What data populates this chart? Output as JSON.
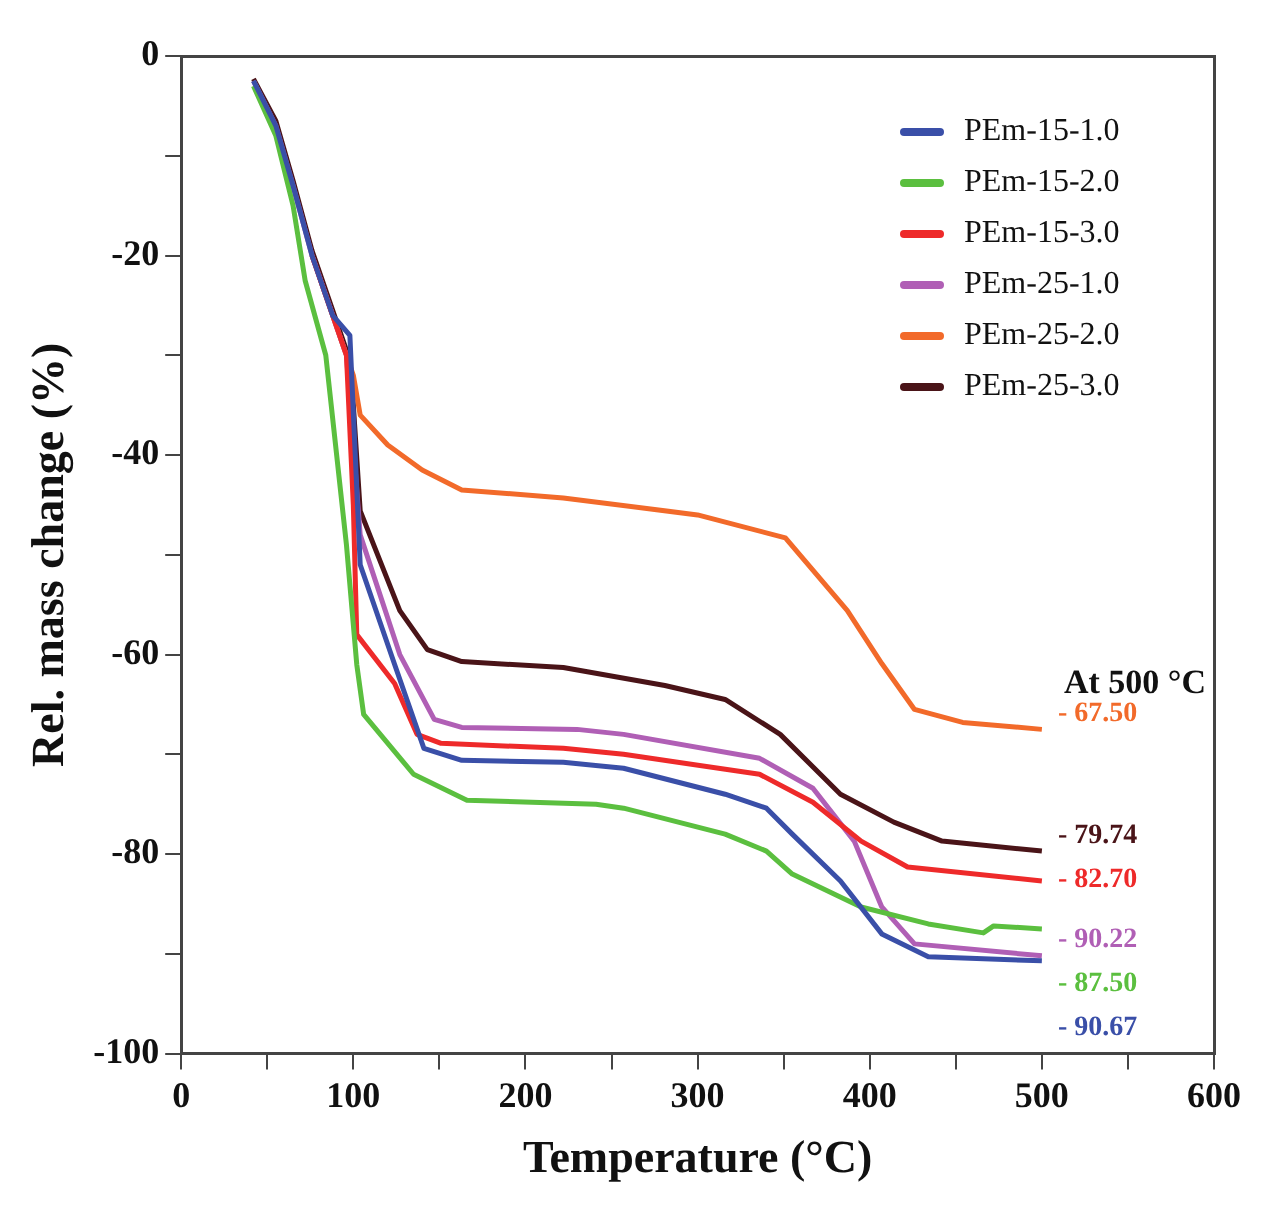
{
  "chart_data": {
    "type": "line",
    "xlabel": "Temperature (°C)",
    "ylabel": "Rel. mass change (%)",
    "xlim": [
      0,
      600
    ],
    "xticks": [
      0,
      {
        "value": 50,
        "label": null
      },
      100,
      {
        "value": 150,
        "label": null
      },
      200,
      {
        "value": 250,
        "label": null
      },
      300,
      {
        "value": 350,
        "label": null
      },
      400,
      {
        "value": 450,
        "label": null
      },
      500,
      {
        "value": 550,
        "label": null
      },
      600
    ],
    "ylim": [
      -100,
      0
    ],
    "yticks": [
      -100,
      {
        "value": -90,
        "label": null
      },
      -80,
      {
        "value": -70,
        "label": null
      },
      -60,
      {
        "value": -50,
        "label": null
      },
      -40,
      {
        "value": -30,
        "label": null
      },
      -20,
      {
        "value": -10,
        "label": null
      },
      0
    ],
    "grid": false,
    "legend": "top right",
    "marker": "none",
    "line_style": "solid",
    "series": [
      {
        "name": "PEm-15-1.0",
        "color": "#3a4fa8",
        "x": [
          42,
          55,
          65,
          76,
          88,
          98,
          104,
          124,
          141,
          163,
          222,
          257,
          316,
          340,
          355,
          383,
          407,
          434,
          500
        ],
        "values": [
          -2.5,
          -7,
          -13,
          -20,
          -26,
          -28,
          -51,
          -61,
          -69.4,
          -70.6,
          -70.8,
          -71.4,
          -74,
          -75.4,
          -78,
          -82.7,
          -88,
          -90.3,
          -90.7
        ]
      },
      {
        "name": "PEm-15-2.0",
        "color": "#5bbf3f",
        "x": [
          42,
          55,
          65,
          72,
          84,
          96,
          102,
          106,
          135,
          166,
          241,
          257,
          316,
          340,
          355,
          395,
          434,
          466,
          472,
          500
        ],
        "values": [
          -3,
          -8,
          -15,
          -22.5,
          -30,
          -49,
          -61,
          -66,
          -72,
          -74.6,
          -75,
          -75.4,
          -78,
          -79.7,
          -82,
          -85.3,
          -87,
          -87.9,
          -87.2,
          -87.5
        ]
      },
      {
        "name": "PEm-15-3.0",
        "color": "#ee2a2a",
        "x": [
          76,
          88,
          96,
          100,
          102,
          124,
          137,
          151,
          222,
          257,
          336,
          367,
          395,
          422,
          500
        ],
        "values": [
          -20,
          -26,
          -30,
          -45,
          -58,
          -62.9,
          -68,
          -68.9,
          -69.4,
          -70,
          -72,
          -74.8,
          -78.7,
          -81.3,
          -82.7
        ]
      },
      {
        "name": "PEm-25-1.0",
        "color": "#b05fb5",
        "x": [
          42,
          55,
          65,
          76,
          88,
          96,
          104,
          127,
          147,
          163,
          230,
          257,
          336,
          367,
          391,
          407,
          426,
          500
        ],
        "values": [
          -2.5,
          -7,
          -13,
          -20,
          -26,
          -30,
          -48,
          -60,
          -66.5,
          -67.3,
          -67.5,
          -68,
          -70.4,
          -73.4,
          -78.7,
          -85.3,
          -89,
          -90.2
        ]
      },
      {
        "name": "PEm-25-2.0",
        "color": "#f26a2a",
        "x": [
          76,
          88,
          96,
          100,
          104,
          120,
          140,
          163,
          222,
          300,
          351,
          387,
          407,
          426,
          454,
          500
        ],
        "values": [
          -20,
          -26,
          -30,
          -32,
          -36,
          -39,
          -41.5,
          -43.5,
          -44.3,
          -46,
          -48.3,
          -55.6,
          -60.9,
          -65.5,
          -66.8,
          -67.5
        ]
      },
      {
        "name": "PEm-25-3.0",
        "color": "#4a1418",
        "x": [
          42,
          55,
          65,
          76,
          88,
          96,
          100,
          104,
          127,
          143,
          163,
          222,
          281,
          316,
          348,
          383,
          414,
          442,
          500
        ],
        "values": [
          -2.3,
          -6.5,
          -12.5,
          -19.5,
          -25.5,
          -29.5,
          -35,
          -45.6,
          -55.6,
          -59.5,
          -60.7,
          -61.3,
          -63.1,
          -64.5,
          -68,
          -74,
          -76.8,
          -78.7,
          -79.7
        ]
      }
    ],
    "annotations": [
      "At 500 °C",
      "- 67.50",
      "- 79.74",
      "- 82.70",
      "- 90.22",
      "- 87.50",
      "- 90.67"
    ]
  }
}
